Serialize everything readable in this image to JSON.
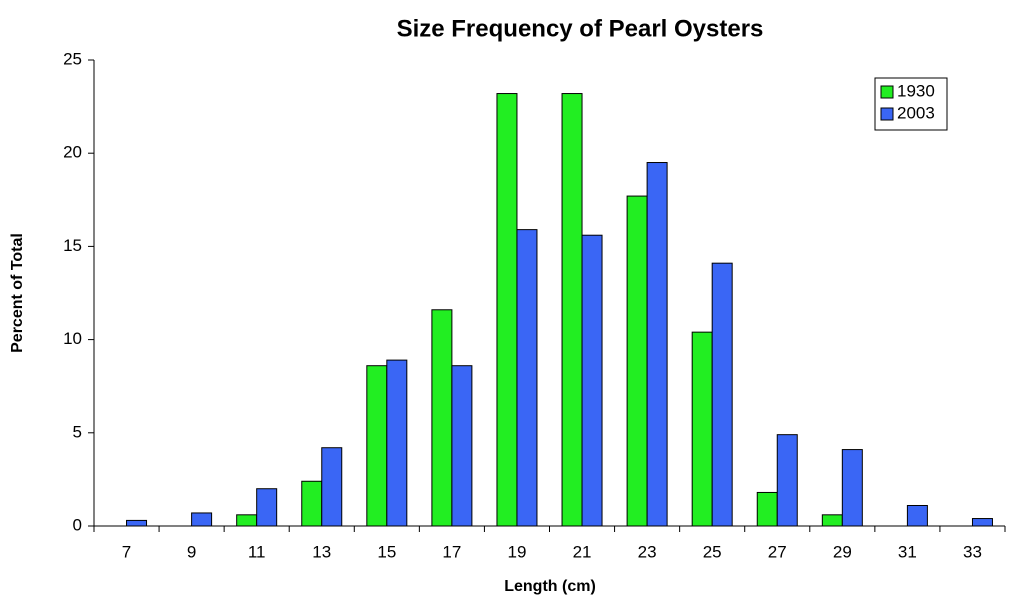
{
  "chart_data": {
    "type": "bar",
    "title": "Size Frequency of Pearl Oysters",
    "xlabel": "Length (cm)",
    "ylabel": "Percent of Total",
    "categories": [
      "7",
      "9",
      "11",
      "13",
      "15",
      "17",
      "19",
      "21",
      "23",
      "25",
      "27",
      "29",
      "31",
      "33"
    ],
    "series": [
      {
        "name": "1930",
        "color": "#22ee22",
        "values": [
          0,
          0,
          0.6,
          2.4,
          8.6,
          11.6,
          23.2,
          23.2,
          17.7,
          10.4,
          1.8,
          0.6,
          0,
          0
        ]
      },
      {
        "name": "2003",
        "color": "#3a66f5",
        "values": [
          0.3,
          0.7,
          2.0,
          4.2,
          8.9,
          8.6,
          15.9,
          15.6,
          19.5,
          14.1,
          4.9,
          4.1,
          1.1,
          0.4
        ]
      }
    ],
    "ylim": [
      0,
      25
    ],
    "yticks": [
      0,
      5,
      10,
      15,
      20,
      25
    ],
    "grid": false,
    "legend": "upper right"
  }
}
